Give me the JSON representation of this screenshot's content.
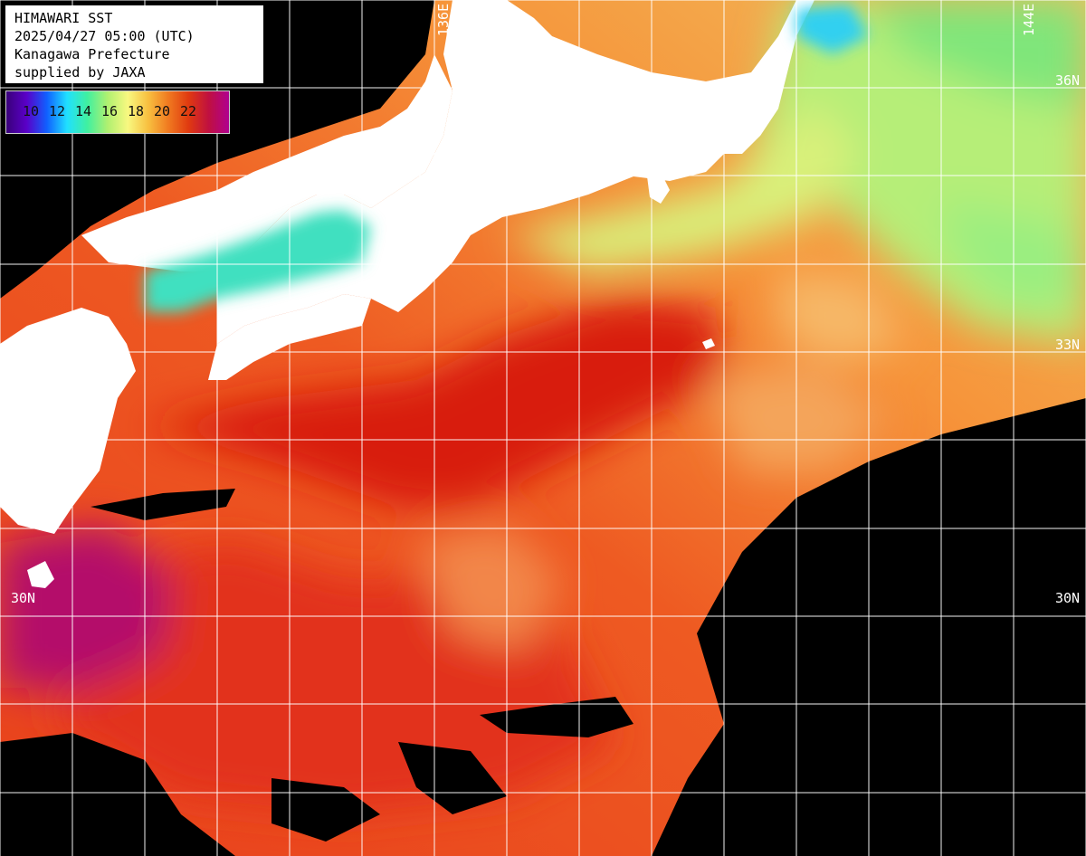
{
  "title": {
    "line1": "HIMAWARI SST",
    "line2": "2025/04/27 05:00 (UTC)",
    "line3": "Kanagawa Prefecture",
    "line4": "supplied by JAXA"
  },
  "legend": {
    "ticks": [
      "10",
      "12",
      "14",
      "16",
      "18",
      "20",
      "22"
    ],
    "colors": [
      "#3a007a",
      "#5a00c8",
      "#1060ff",
      "#20e0ff",
      "#40f0a0",
      "#b0f070",
      "#f8f880",
      "#f8c040",
      "#f07a20",
      "#e03a10",
      "#c01040",
      "#b00090"
    ]
  },
  "grid_labels": {
    "lon_136": "136E",
    "lon_144": "144E",
    "lat_30_left": "30N",
    "lat_30_right": "30N",
    "lat_33": "33N",
    "lat_36": "36N"
  },
  "colors": {
    "land": "#ffffff",
    "no_data": "#000000",
    "grid": "#ffffff"
  }
}
